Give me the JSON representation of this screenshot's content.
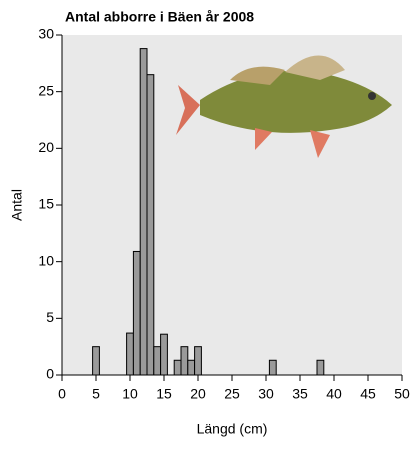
{
  "chart_data": {
    "type": "histogram",
    "title": "Antal abborre i Bäen år 2008",
    "x_label": "Längd (cm)",
    "y_label": "Antal",
    "bins": [
      4.5,
      5.5,
      6.5,
      7.5,
      8.5,
      9.5,
      10.5,
      11.5,
      12.5,
      13.5,
      14.5,
      15.5,
      16.5,
      17.5,
      18.5,
      19.5,
      20.5,
      21.5,
      22.5,
      23.5,
      24.5,
      25.5,
      26.5,
      27.5,
      28.5,
      29.5,
      30.5,
      31.5,
      32.5,
      33.5,
      34.5,
      35.5,
      36.5,
      37.5,
      38.5
    ],
    "values": [
      2.5,
      0,
      0,
      0,
      0,
      3.7,
      10.9,
      28.8,
      26.5,
      2.5,
      3.6,
      0,
      1.3,
      2.5,
      1.3,
      2.5,
      0,
      0,
      0,
      0,
      0,
      0,
      0,
      0,
      0,
      0,
      1.3,
      0,
      0,
      0,
      0,
      0,
      0,
      1.3
    ],
    "color": "#9a9a9a",
    "xlim": [
      0,
      50
    ],
    "xticks": [
      0,
      5,
      10,
      15,
      20,
      25,
      30,
      35,
      40,
      45,
      50
    ],
    "ylim": [
      0,
      30
    ],
    "yticks": [
      0,
      5,
      10,
      15,
      20,
      25,
      30
    ]
  }
}
